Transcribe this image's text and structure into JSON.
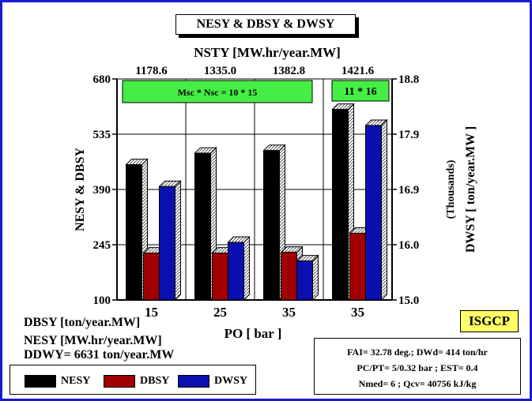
{
  "title": "NESY & DBSY & DWSY",
  "top_axis_label": "NSTY [MW.hr/year.MW]",
  "top_values": [
    "1178.6",
    "1335.0",
    "1382.8",
    "1421.6"
  ],
  "left_axis_label": "NESY & DBSY",
  "right_axis_label": "DWSY [ ton/year.MW ]",
  "right_axis_sublabel": "(Thousands)",
  "x_axis_label": "PO [ bar ]",
  "annotation_left": "Msc * Nsc = 10 * 15",
  "annotation_right": "11 * 16",
  "badge": "ISGCP",
  "notes": [
    "DBSY [ton/year.MW]",
    "NESY [MW.hr/year.MW]",
    "DDWY= 6631 ton/year.MW"
  ],
  "info_lines": [
    "FAI= 32.78 deg.; DWd= 414 ton/hr",
    "PC/PT= 5/0.32 bar ; EST= 0.4",
    "Nmed= 6 ; Qcv= 40756 kJ/kg"
  ],
  "colors": {
    "border": "#1a1ad0",
    "nesy": "#000000",
    "dbsy": "#a00000",
    "dwsy": "#0a10b0",
    "annotation_fill": "#44ee44",
    "badge_fill": "#ffff66"
  },
  "legend": [
    {
      "label": "NESY"
    },
    {
      "label": "DBSY"
    },
    {
      "label": "DWSY"
    }
  ],
  "chart_data": {
    "type": "bar",
    "categories": [
      "15",
      "25",
      "35",
      "35"
    ],
    "series": [
      {
        "name": "NESY",
        "axis": "left",
        "values": [
          455,
          485,
          492,
          600
        ]
      },
      {
        "name": "DBSY",
        "axis": "left",
        "values": [
          223,
          223,
          225,
          275
        ]
      },
      {
        "name": "DWSY",
        "axis": "right",
        "values": [
          16.95,
          15.99,
          15.67,
          18.0
        ]
      }
    ],
    "left_axis": {
      "ylim": [
        100,
        680
      ],
      "ticks": [
        "100",
        "245",
        "390",
        "535",
        "680"
      ]
    },
    "right_axis": {
      "ylim": [
        15.0,
        18.8
      ],
      "ticks": [
        "15.0",
        "16.0",
        "16.9",
        "17.9",
        "18.8"
      ]
    },
    "xlabel": "PO [ bar ]",
    "ylabel": "NESY & DBSY",
    "y2label": "DWSY [ ton/year.MW ]",
    "grid": true
  }
}
